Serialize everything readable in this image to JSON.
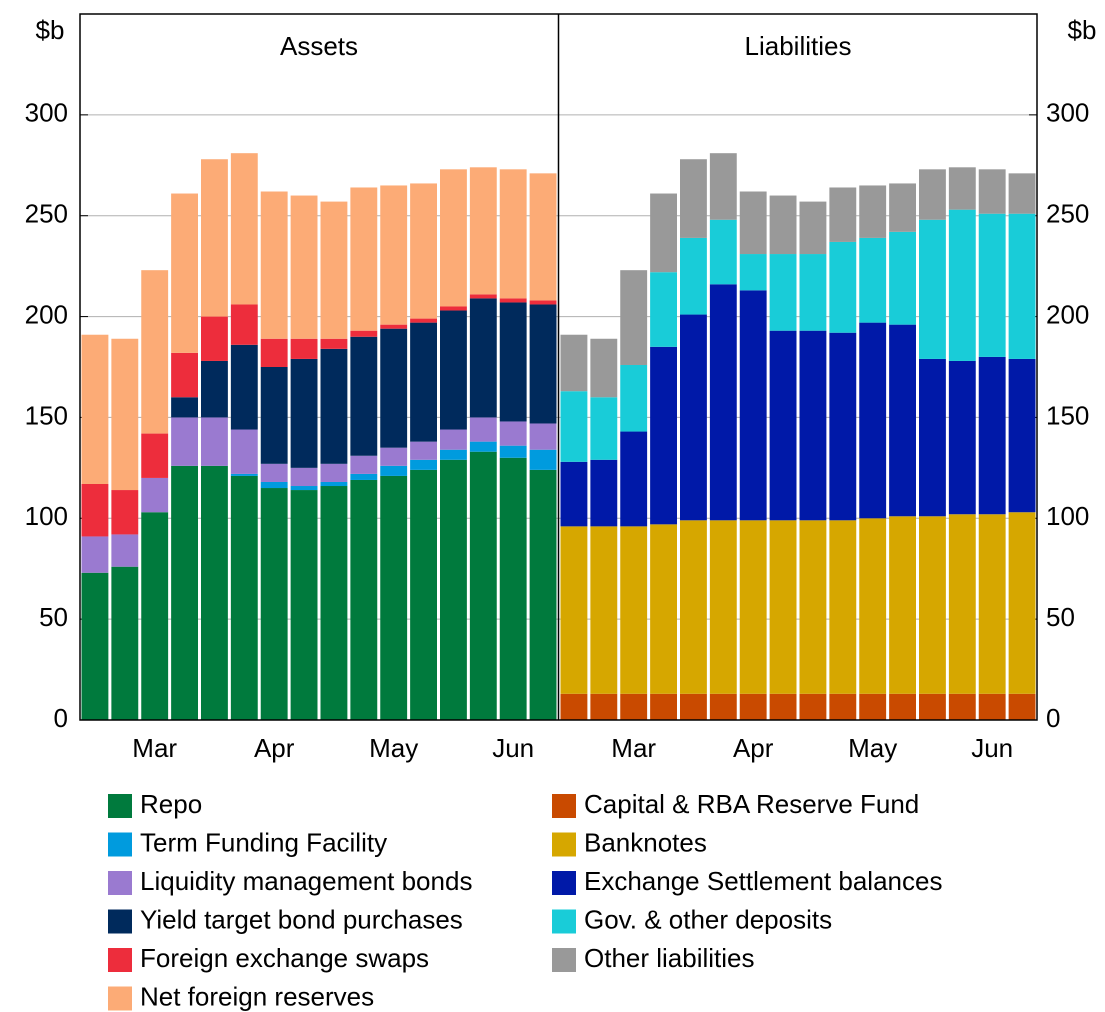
{
  "chart_data": [
    {
      "type": "bar",
      "stacked": true,
      "title": "Assets",
      "ylabel": "$b",
      "categories": [
        null,
        null,
        "Mar",
        null,
        null,
        null,
        "Apr",
        null,
        null,
        null,
        "May",
        null,
        null,
        null,
        "Jun",
        null
      ],
      "ylim": [
        0,
        350
      ],
      "yticks": [
        0,
        50,
        100,
        150,
        200,
        250,
        300
      ],
      "grid": true,
      "axis_side": "left",
      "series": [
        {
          "name": "Repo",
          "color": "#007a3d",
          "values": [
            73,
            76,
            103,
            126,
            126,
            121,
            115,
            114,
            116,
            119,
            121,
            124,
            129,
            133,
            130,
            124
          ]
        },
        {
          "name": "Term Funding Facility",
          "color": "#009bde",
          "values": [
            0,
            0,
            0,
            0,
            0,
            1,
            3,
            2,
            2,
            3,
            5,
            5,
            5,
            5,
            6,
            10
          ]
        },
        {
          "name": "Liquidity management bonds",
          "color": "#9a7ad0",
          "values": [
            18,
            16,
            17,
            24,
            24,
            22,
            9,
            9,
            9,
            9,
            9,
            9,
            10,
            12,
            12,
            13
          ]
        },
        {
          "name": "Yield target bond purchases",
          "color": "#002a5c",
          "values": [
            0,
            0,
            0,
            10,
            28,
            42,
            48,
            54,
            57,
            59,
            59,
            59,
            59,
            59,
            59,
            59
          ]
        },
        {
          "name": "Foreign exchange swaps",
          "color": "#ed2d3c",
          "values": [
            26,
            22,
            22,
            22,
            22,
            20,
            14,
            10,
            5,
            3,
            2,
            2,
            2,
            2,
            2,
            2
          ]
        },
        {
          "name": "Net foreign reserves",
          "color": "#fcab76",
          "values": [
            74,
            75,
            81,
            79,
            78,
            75,
            73,
            71,
            68,
            71,
            69,
            67,
            68,
            63,
            64,
            63
          ]
        }
      ]
    },
    {
      "type": "bar",
      "stacked": true,
      "title": "Liabilities",
      "ylabel": "$b",
      "categories": [
        null,
        null,
        "Mar",
        null,
        null,
        null,
        "Apr",
        null,
        null,
        null,
        "May",
        null,
        null,
        null,
        "Jun",
        null
      ],
      "ylim": [
        0,
        350
      ],
      "yticks": [
        0,
        50,
        100,
        150,
        200,
        250,
        300
      ],
      "grid": true,
      "axis_side": "right",
      "series": [
        {
          "name": "Capital & RBA Reserve Fund",
          "color": "#c94a00",
          "values": [
            13,
            13,
            13,
            13,
            13,
            13,
            13,
            13,
            13,
            13,
            13,
            13,
            13,
            13,
            13,
            13
          ]
        },
        {
          "name": "Banknotes",
          "color": "#d6a700",
          "values": [
            83,
            83,
            83,
            84,
            86,
            86,
            86,
            86,
            86,
            86,
            87,
            88,
            88,
            89,
            89,
            90
          ]
        },
        {
          "name": "Exchange Settlement balances",
          "color": "#0019a8",
          "values": [
            32,
            33,
            47,
            88,
            102,
            117,
            114,
            94,
            94,
            93,
            97,
            95,
            78,
            76,
            78,
            76
          ]
        },
        {
          "name": "Gov. & other deposits",
          "color": "#19ccd8",
          "values": [
            35,
            31,
            33,
            37,
            38,
            32,
            18,
            38,
            38,
            45,
            42,
            46,
            69,
            75,
            71,
            72
          ]
        },
        {
          "name": "Other liabilities",
          "color": "#999999",
          "values": [
            28,
            29,
            47,
            39,
            39,
            33,
            31,
            29,
            26,
            27,
            26,
            24,
            25,
            21,
            22,
            20
          ]
        }
      ]
    }
  ]
}
